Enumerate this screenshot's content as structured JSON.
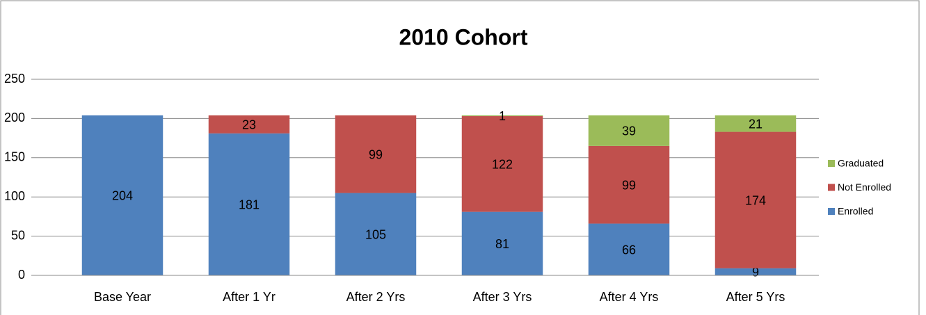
{
  "chart_data": {
    "type": "stacked_bar",
    "title": "2010 Cohort",
    "categories": [
      "Base Year",
      "After 1 Yr",
      "After 2 Yrs",
      "After 3 Yrs",
      "After 4 Yrs",
      "After 5 Yrs"
    ],
    "series": [
      {
        "name": "Enrolled",
        "color": "#4f81bd",
        "values": [
          204,
          181,
          105,
          81,
          66,
          9
        ]
      },
      {
        "name": "Not Enrolled",
        "color": "#c0504d",
        "values": [
          null,
          23,
          99,
          122,
          99,
          174
        ]
      },
      {
        "name": "Graduated",
        "color": "#9bbb59",
        "values": [
          null,
          null,
          null,
          1,
          39,
          21
        ]
      }
    ],
    "ylim": [
      0,
      250
    ],
    "yticks": [
      0,
      50,
      100,
      150,
      200,
      250
    ],
    "grid": true,
    "legend": "right"
  }
}
